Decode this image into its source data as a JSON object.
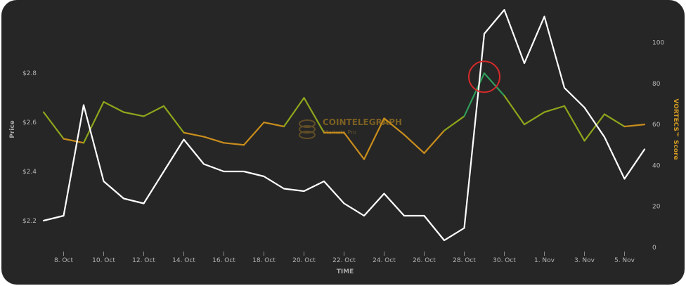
{
  "chart_data": {
    "type": "line",
    "xlabel": "TIME",
    "ylabel_left": "Price",
    "ylabel_right": "VORTECS™ Score",
    "x_ticks": [
      "8. Oct",
      "10. Oct",
      "12. Oct",
      "14. Oct",
      "16. Oct",
      "18. Oct",
      "20. Oct",
      "22. Oct",
      "24. Oct",
      "26. Oct",
      "28. Oct",
      "30. Oct",
      "1. Nov",
      "3. Nov",
      "5. Nov"
    ],
    "y_left_ticks": [
      "$2.8",
      "$2.6",
      "$2.4",
      "$2.2"
    ],
    "y_right_ticks": [
      "100",
      "80",
      "60",
      "40",
      "20",
      "0"
    ],
    "y_left_range": [
      2.16,
      2.8
    ],
    "y_right_range": [
      0,
      100
    ],
    "x": [
      "7. Oct",
      "8. Oct",
      "9. Oct",
      "10. Oct",
      "11. Oct",
      "12. Oct",
      "13. Oct",
      "14. Oct",
      "15. Oct",
      "16. Oct",
      "17. Oct",
      "18. Oct",
      "19. Oct",
      "20. Oct",
      "21. Oct",
      "22. Oct",
      "23. Oct",
      "24. Oct",
      "25. Oct",
      "26. Oct",
      "27. Oct",
      "28. Oct",
      "29. Oct",
      "30. Oct",
      "31. Oct",
      "1. Nov",
      "2. Nov",
      "3. Nov",
      "4. Nov",
      "5. Nov",
      "6. Nov"
    ],
    "series": [
      {
        "name": "Price",
        "axis": "left",
        "color": "#ffffff",
        "values": [
          2.2,
          2.22,
          2.67,
          2.36,
          2.29,
          2.27,
          2.4,
          2.53,
          2.43,
          2.4,
          2.4,
          2.38,
          2.33,
          2.32,
          2.36,
          2.27,
          2.22,
          2.31,
          2.22,
          2.22,
          2.12,
          2.17,
          2.96,
          3.09,
          2.84,
          3.03,
          2.74,
          2.66,
          2.54,
          2.37,
          2.49
        ]
      },
      {
        "name": "VORTECS™ Score",
        "axis": "right",
        "color_low": "#c98d1c",
        "color_mid": "#8ea61b",
        "color_high": "#2f9e5a",
        "values": [
          66,
          53,
          51,
          71,
          66,
          64,
          69,
          56,
          54,
          51,
          50,
          61,
          59,
          73,
          56,
          56,
          43,
          63,
          55,
          46,
          57,
          64,
          85,
          74,
          60,
          66,
          69,
          52,
          65,
          59,
          60
        ]
      }
    ],
    "annotation": {
      "type": "circle",
      "color": "#d42a2a",
      "at_x": "29. Oct"
    },
    "watermark": {
      "line1": "COINTELEGRAPH",
      "line2": "Markets Pro"
    },
    "grid": false
  }
}
